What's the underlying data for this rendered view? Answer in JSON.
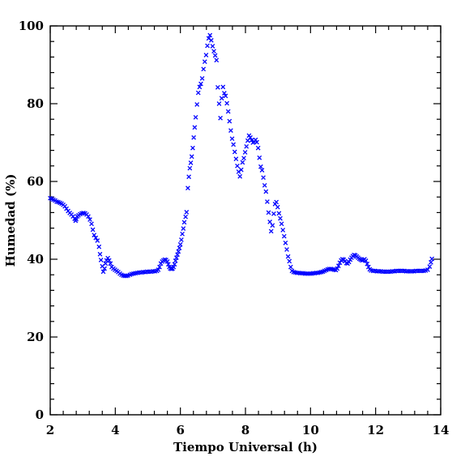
{
  "chart_data": {
    "type": "scatter",
    "xlabel": "Tiempo Universal (h)",
    "ylabel": "Humedad (%)",
    "xlim": [
      2,
      14
    ],
    "ylim": [
      0,
      100
    ],
    "xticks": [
      "2",
      "4",
      "6",
      "8",
      "10",
      "12",
      "14"
    ],
    "yticks": [
      "0",
      "20",
      "40",
      "60",
      "80",
      "100"
    ],
    "marker": "x",
    "marker_color": "#0000ff",
    "grid": false,
    "series": [
      {
        "points": [
          [
            2.0,
            55.7
          ],
          [
            2.05,
            55.5
          ],
          [
            2.1,
            55.3
          ],
          [
            2.15,
            55.1
          ],
          [
            2.2,
            54.8
          ],
          [
            2.25,
            54.7
          ],
          [
            2.3,
            54.5
          ],
          [
            2.35,
            54.3
          ],
          [
            2.4,
            54.0
          ],
          [
            2.45,
            53.6
          ],
          [
            2.5,
            53.0
          ],
          [
            2.55,
            52.4
          ],
          [
            2.6,
            51.9
          ],
          [
            2.65,
            51.5
          ],
          [
            2.7,
            51.0
          ],
          [
            2.75,
            50.4
          ],
          [
            2.78,
            49.9
          ],
          [
            2.8,
            50.3
          ],
          [
            2.83,
            51.0
          ],
          [
            2.87,
            51.3
          ],
          [
            2.92,
            51.6
          ],
          [
            2.97,
            51.8
          ],
          [
            3.02,
            51.9
          ],
          [
            3.07,
            51.8
          ],
          [
            3.12,
            51.5
          ],
          [
            3.17,
            51.0
          ],
          [
            3.22,
            50.2
          ],
          [
            3.27,
            49.1
          ],
          [
            3.31,
            47.6
          ],
          [
            3.35,
            46.2
          ],
          [
            3.4,
            45.5
          ],
          [
            3.45,
            44.8
          ],
          [
            3.5,
            43.2
          ],
          [
            3.53,
            41.3
          ],
          [
            3.56,
            39.8
          ],
          [
            3.6,
            38.2
          ],
          [
            3.63,
            36.8
          ],
          [
            3.67,
            37.6
          ],
          [
            3.7,
            38.9
          ],
          [
            3.73,
            39.7
          ],
          [
            3.77,
            40.3
          ],
          [
            3.81,
            39.7
          ],
          [
            3.85,
            38.9
          ],
          [
            3.89,
            38.0
          ],
          [
            3.94,
            37.6
          ],
          [
            3.99,
            37.3
          ],
          [
            4.04,
            37.0
          ],
          [
            4.09,
            36.7
          ],
          [
            4.14,
            36.3
          ],
          [
            4.19,
            36.0
          ],
          [
            4.24,
            35.8
          ],
          [
            4.29,
            35.7
          ],
          [
            4.34,
            35.7
          ],
          [
            4.39,
            35.8
          ],
          [
            4.45,
            36.0
          ],
          [
            4.5,
            36.2
          ],
          [
            4.56,
            36.3
          ],
          [
            4.62,
            36.4
          ],
          [
            4.68,
            36.5
          ],
          [
            4.74,
            36.6
          ],
          [
            4.8,
            36.6
          ],
          [
            4.86,
            36.7
          ],
          [
            4.92,
            36.7
          ],
          [
            4.98,
            36.8
          ],
          [
            5.04,
            36.8
          ],
          [
            5.1,
            36.8
          ],
          [
            5.16,
            36.9
          ],
          [
            5.22,
            36.9
          ],
          [
            5.28,
            37.0
          ],
          [
            5.32,
            37.3
          ],
          [
            5.36,
            38.0
          ],
          [
            5.4,
            38.9
          ],
          [
            5.44,
            39.4
          ],
          [
            5.48,
            39.7
          ],
          [
            5.52,
            39.9
          ],
          [
            5.56,
            39.8
          ],
          [
            5.6,
            39.4
          ],
          [
            5.63,
            38.7
          ],
          [
            5.66,
            38.0
          ],
          [
            5.69,
            37.6
          ],
          [
            5.73,
            37.5
          ],
          [
            5.76,
            37.6
          ],
          [
            5.79,
            38.0
          ],
          [
            5.82,
            38.7
          ],
          [
            5.85,
            39.6
          ],
          [
            5.88,
            40.4
          ],
          [
            5.91,
            41.2
          ],
          [
            5.94,
            42.0
          ],
          [
            5.97,
            42.9
          ],
          [
            6.0,
            43.8
          ],
          [
            6.03,
            45.0
          ],
          [
            6.06,
            46.5
          ],
          [
            6.09,
            47.9
          ],
          [
            6.12,
            49.5
          ],
          [
            6.16,
            50.9
          ],
          [
            6.19,
            52.1
          ],
          [
            6.23,
            58.3
          ],
          [
            6.26,
            61.2
          ],
          [
            6.29,
            63.4
          ],
          [
            6.32,
            64.8
          ],
          [
            6.35,
            66.4
          ],
          [
            6.38,
            68.6
          ],
          [
            6.41,
            71.3
          ],
          [
            6.44,
            73.9
          ],
          [
            6.47,
            76.5
          ],
          [
            6.51,
            79.8
          ],
          [
            6.55,
            82.8
          ],
          [
            6.59,
            84.3
          ],
          [
            6.63,
            85.1
          ],
          [
            6.67,
            86.5
          ],
          [
            6.71,
            88.9
          ],
          [
            6.75,
            90.8
          ],
          [
            6.79,
            92.5
          ],
          [
            6.83,
            94.9
          ],
          [
            6.87,
            96.8
          ],
          [
            6.91,
            97.6
          ],
          [
            6.95,
            96.3
          ],
          [
            6.99,
            94.8
          ],
          [
            7.03,
            93.5
          ],
          [
            7.07,
            92.4
          ],
          [
            7.11,
            91.2
          ],
          [
            7.15,
            84.2
          ],
          [
            7.19,
            80.0
          ],
          [
            7.23,
            76.3
          ],
          [
            7.27,
            81.4
          ],
          [
            7.31,
            84.3
          ],
          [
            7.35,
            82.7
          ],
          [
            7.39,
            82.0
          ],
          [
            7.43,
            80.1
          ],
          [
            7.47,
            78.0
          ],
          [
            7.51,
            75.5
          ],
          [
            7.55,
            73.1
          ],
          [
            7.59,
            71.0
          ],
          [
            7.63,
            69.5
          ],
          [
            7.67,
            67.6
          ],
          [
            7.71,
            65.8
          ],
          [
            7.75,
            64.0
          ],
          [
            7.79,
            62.5
          ],
          [
            7.83,
            61.3
          ],
          [
            7.87,
            63.0
          ],
          [
            7.91,
            64.9
          ],
          [
            7.95,
            66.0
          ],
          [
            7.99,
            67.5
          ],
          [
            8.03,
            69.0
          ],
          [
            8.07,
            70.5
          ],
          [
            8.11,
            71.8
          ],
          [
            8.15,
            71.3
          ],
          [
            8.19,
            70.6
          ],
          [
            8.23,
            70.0
          ],
          [
            8.27,
            70.2
          ],
          [
            8.31,
            70.7
          ],
          [
            8.35,
            70.1
          ],
          [
            8.39,
            68.6
          ],
          [
            8.43,
            66.1
          ],
          [
            8.47,
            63.8
          ],
          [
            8.51,
            62.9
          ],
          [
            8.55,
            61.0
          ],
          [
            8.59,
            59.0
          ],
          [
            8.63,
            57.4
          ],
          [
            8.67,
            54.8
          ],
          [
            8.71,
            52.0
          ],
          [
            8.75,
            49.6
          ],
          [
            8.79,
            47.2
          ],
          [
            8.83,
            48.7
          ],
          [
            8.87,
            51.7
          ],
          [
            8.91,
            54.2
          ],
          [
            8.95,
            54.7
          ],
          [
            8.99,
            53.4
          ],
          [
            9.03,
            51.8
          ],
          [
            9.07,
            50.5
          ],
          [
            9.11,
            49.1
          ],
          [
            9.15,
            47.5
          ],
          [
            9.19,
            45.9
          ],
          [
            9.23,
            44.2
          ],
          [
            9.27,
            42.5
          ],
          [
            9.31,
            40.7
          ],
          [
            9.35,
            39.5
          ],
          [
            9.39,
            38.0
          ],
          [
            9.43,
            37.0
          ],
          [
            9.48,
            36.7
          ],
          [
            9.53,
            36.6
          ],
          [
            9.58,
            36.5
          ],
          [
            9.63,
            36.5
          ],
          [
            9.68,
            36.4
          ],
          [
            9.73,
            36.4
          ],
          [
            9.78,
            36.4
          ],
          [
            9.83,
            36.3
          ],
          [
            9.88,
            36.3
          ],
          [
            9.93,
            36.3
          ],
          [
            9.98,
            36.3
          ],
          [
            10.03,
            36.3
          ],
          [
            10.08,
            36.4
          ],
          [
            10.13,
            36.4
          ],
          [
            10.18,
            36.5
          ],
          [
            10.23,
            36.5
          ],
          [
            10.28,
            36.6
          ],
          [
            10.33,
            36.7
          ],
          [
            10.38,
            36.8
          ],
          [
            10.43,
            37.0
          ],
          [
            10.48,
            37.2
          ],
          [
            10.53,
            37.4
          ],
          [
            10.58,
            37.5
          ],
          [
            10.63,
            37.5
          ],
          [
            10.68,
            37.4
          ],
          [
            10.73,
            37.3
          ],
          [
            10.78,
            37.2
          ],
          [
            10.82,
            37.6
          ],
          [
            10.86,
            38.3
          ],
          [
            10.9,
            39.1
          ],
          [
            10.94,
            39.7
          ],
          [
            10.98,
            40.0
          ],
          [
            11.02,
            39.9
          ],
          [
            11.06,
            39.5
          ],
          [
            11.1,
            39.0
          ],
          [
            11.14,
            38.9
          ],
          [
            11.18,
            39.3
          ],
          [
            11.22,
            39.9
          ],
          [
            11.26,
            40.4
          ],
          [
            11.3,
            40.8
          ],
          [
            11.34,
            41.1
          ],
          [
            11.38,
            41.0
          ],
          [
            11.42,
            40.7
          ],
          [
            11.46,
            40.4
          ],
          [
            11.5,
            40.1
          ],
          [
            11.54,
            39.9
          ],
          [
            11.58,
            39.7
          ],
          [
            11.62,
            39.8
          ],
          [
            11.66,
            40.0
          ],
          [
            11.7,
            39.6
          ],
          [
            11.74,
            38.8
          ],
          [
            11.78,
            38.0
          ],
          [
            11.82,
            37.4
          ],
          [
            11.86,
            37.1
          ],
          [
            11.92,
            37.0
          ],
          [
            11.98,
            37.0
          ],
          [
            12.04,
            36.9
          ],
          [
            12.1,
            36.9
          ],
          [
            12.16,
            36.9
          ],
          [
            12.22,
            36.8
          ],
          [
            12.28,
            36.8
          ],
          [
            12.34,
            36.8
          ],
          [
            12.4,
            36.8
          ],
          [
            12.46,
            36.8
          ],
          [
            12.52,
            36.9
          ],
          [
            12.58,
            36.9
          ],
          [
            12.64,
            37.0
          ],
          [
            12.7,
            37.0
          ],
          [
            12.76,
            37.0
          ],
          [
            12.82,
            37.0
          ],
          [
            12.88,
            37.0
          ],
          [
            12.94,
            36.9
          ],
          [
            13.0,
            36.9
          ],
          [
            13.06,
            36.9
          ],
          [
            13.12,
            36.9
          ],
          [
            13.18,
            36.9
          ],
          [
            13.24,
            37.0
          ],
          [
            13.3,
            37.0
          ],
          [
            13.36,
            37.0
          ],
          [
            13.42,
            37.0
          ],
          [
            13.48,
            37.0
          ],
          [
            13.54,
            37.1
          ],
          [
            13.6,
            37.3
          ],
          [
            13.66,
            38.1
          ],
          [
            13.7,
            39.2
          ],
          [
            13.73,
            40.1
          ]
        ]
      }
    ]
  }
}
